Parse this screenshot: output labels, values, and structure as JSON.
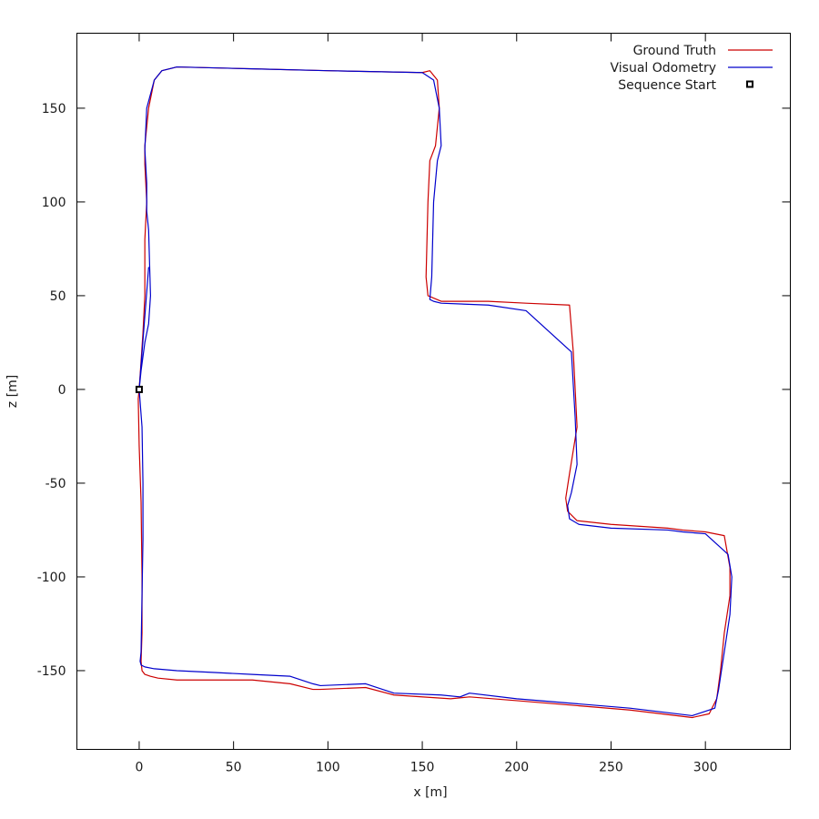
{
  "chart_data": {
    "type": "line",
    "title": "",
    "xlabel": "x [m]",
    "ylabel": "z [m]",
    "xlim": [
      -33,
      345
    ],
    "ylim": [
      -192,
      190
    ],
    "grid": false,
    "legend_position": "top-right",
    "x_ticks": [
      0,
      50,
      100,
      150,
      200,
      250,
      300
    ],
    "y_ticks": [
      -150,
      -100,
      -50,
      0,
      50,
      100,
      150
    ],
    "series": [
      {
        "name": "Ground Truth",
        "color": "#cc0000",
        "x": [
          0,
          -0.5,
          0,
          1,
          1.5,
          1.5,
          1,
          1.5,
          3,
          6,
          10,
          20,
          40,
          60,
          80,
          92,
          96,
          120,
          135,
          165,
          175,
          200,
          260,
          293,
          302,
          306,
          308,
          310,
          313,
          313,
          310,
          300,
          288,
          280,
          250,
          232,
          227,
          226,
          228,
          232,
          230,
          228,
          205,
          185,
          160,
          153,
          152,
          153,
          154,
          157,
          159,
          158,
          154,
          150,
          100,
          60,
          20,
          12,
          8,
          5,
          3,
          3,
          4,
          3,
          3,
          2,
          1,
          0
        ],
        "y": [
          0,
          -5,
          -30,
          -60,
          -100,
          -130,
          -145,
          -150,
          -152,
          -153,
          -154,
          -155,
          -155,
          -155,
          -157,
          -160,
          -160,
          -159,
          -163,
          -165,
          -164,
          -166,
          -171,
          -175,
          -173,
          -165,
          -150,
          -130,
          -110,
          -95,
          -78,
          -76,
          -75,
          -74,
          -72,
          -70,
          -65,
          -58,
          -45,
          -20,
          20,
          45,
          46,
          47,
          47,
          50,
          60,
          100,
          122,
          130,
          150,
          165,
          170,
          169,
          170,
          171,
          172,
          170,
          165,
          150,
          130,
          120,
          100,
          80,
          50,
          30,
          15,
          0
        ]
      },
      {
        "name": "Visual Odometry",
        "color": "#0000cc",
        "x": [
          0,
          1.5,
          2,
          2,
          1.5,
          1,
          0.5,
          1,
          3,
          8,
          20,
          40,
          60,
          80,
          92,
          96,
          120,
          135,
          160,
          170,
          175,
          200,
          260,
          293,
          305,
          307,
          310,
          313,
          314,
          312,
          300,
          288,
          280,
          250,
          233,
          228,
          227,
          229,
          232,
          231,
          229,
          205,
          185,
          160,
          156,
          154,
          155,
          156,
          158,
          160,
          159,
          156,
          150,
          100,
          60,
          20,
          12,
          8,
          4,
          3,
          4,
          4,
          5,
          6,
          5,
          3,
          1,
          0,
          5
        ],
        "y": [
          0,
          -20,
          -50,
          -80,
          -110,
          -140,
          -145,
          -147,
          -148,
          -149,
          -150,
          -151,
          -152,
          -153,
          -157,
          -158,
          -157,
          -162,
          -163,
          -164,
          -162,
          -165,
          -170,
          -174,
          -170,
          -160,
          -140,
          -120,
          -100,
          -88,
          -77,
          -76,
          -75,
          -74,
          -72,
          -69,
          -62,
          -55,
          -40,
          -15,
          20,
          42,
          45,
          46,
          47,
          48,
          60,
          100,
          122,
          130,
          150,
          165,
          169,
          170,
          171,
          172,
          170,
          165,
          150,
          128,
          110,
          95,
          85,
          50,
          35,
          25,
          10,
          0,
          65
        ]
      }
    ],
    "sequence_start": {
      "name": "Sequence Start",
      "x": 0,
      "y": 0
    }
  }
}
